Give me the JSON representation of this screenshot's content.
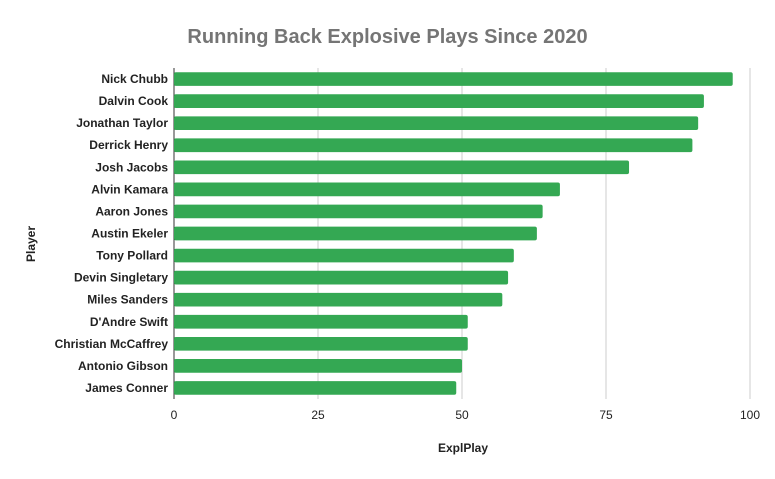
{
  "chart_data": {
    "type": "bar",
    "orientation": "horizontal",
    "title": "Running Back Explosive Plays Since 2020",
    "xlabel": "ExplPlay",
    "ylabel": "Player",
    "xlim": [
      0,
      100
    ],
    "xticks": [
      0,
      25,
      50,
      75,
      100
    ],
    "grid": true,
    "legend": "none",
    "bar_color": "#34a853",
    "categories": [
      "Nick Chubb",
      "Dalvin Cook",
      "Jonathan Taylor",
      "Derrick Henry",
      "Josh Jacobs",
      "Alvin Kamara",
      "Aaron Jones",
      "Austin Ekeler",
      "Tony Pollard",
      "Devin Singletary",
      "Miles Sanders",
      "D'Andre Swift",
      "Christian McCaffrey",
      "Antonio Gibson",
      "James Conner"
    ],
    "values": [
      97,
      92,
      91,
      90,
      79,
      67,
      64,
      63,
      59,
      58,
      57,
      51,
      51,
      50,
      49
    ]
  }
}
